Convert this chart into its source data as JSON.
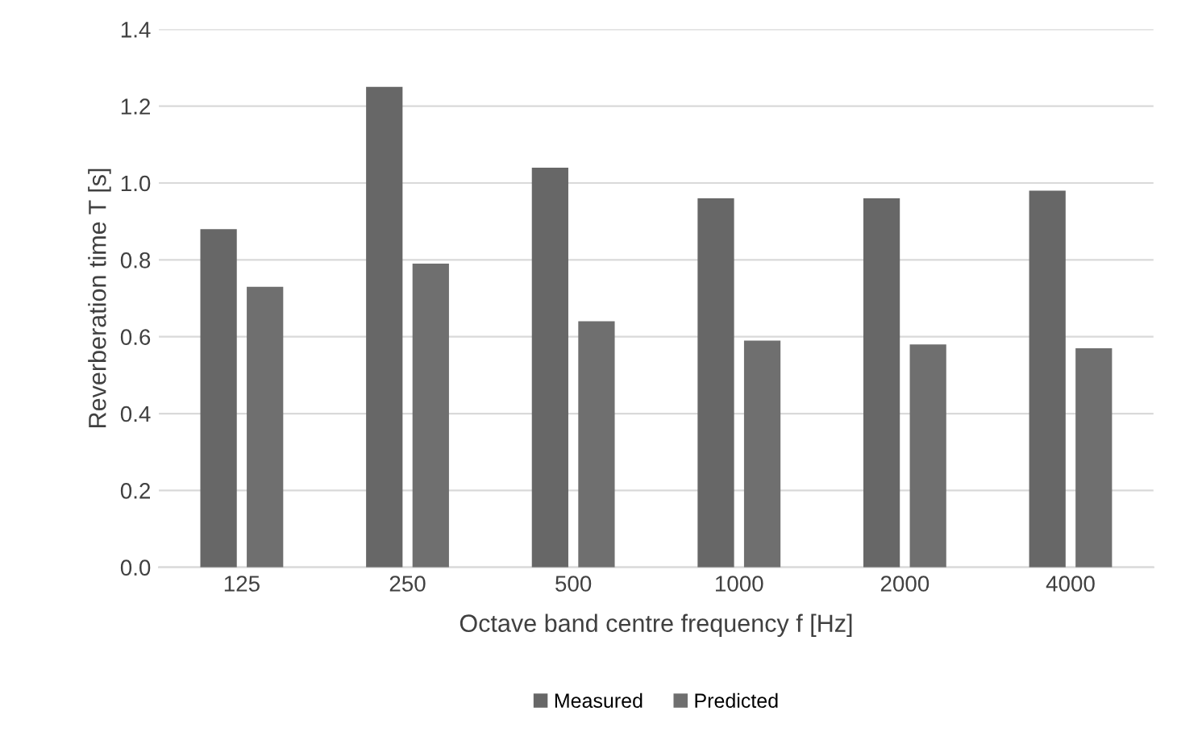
{
  "chart_data": {
    "type": "bar",
    "xlabel": "Octave band centre frequency f [Hz]",
    "ylabel": "Reverberation time T [s]",
    "categories": [
      "125",
      "250",
      "500",
      "1000",
      "2000",
      "4000"
    ],
    "series": [
      {
        "name": "Measured",
        "color": "#676767",
        "values": [
          0.88,
          1.25,
          1.04,
          0.96,
          0.96,
          0.98
        ]
      },
      {
        "name": "Predicted",
        "color": "#6f6f6f",
        "values": [
          0.73,
          0.79,
          0.64,
          0.59,
          0.58,
          0.57
        ]
      }
    ],
    "ylim": [
      0,
      1.4
    ],
    "yticks": [
      {
        "value": 0,
        "label": "0.0"
      },
      {
        "value": 0.2,
        "label": "0.2"
      },
      {
        "value": 0.4,
        "label": "0.4"
      },
      {
        "value": 0.6,
        "label": "0.6"
      },
      {
        "value": 0.8,
        "label": "0.8"
      },
      {
        "value": 1.0,
        "label": "1.0"
      },
      {
        "value": 1.2,
        "label": "1.2"
      },
      {
        "value": 1.4,
        "label": "1.4"
      }
    ],
    "grid": "y",
    "legend": "bottom"
  }
}
